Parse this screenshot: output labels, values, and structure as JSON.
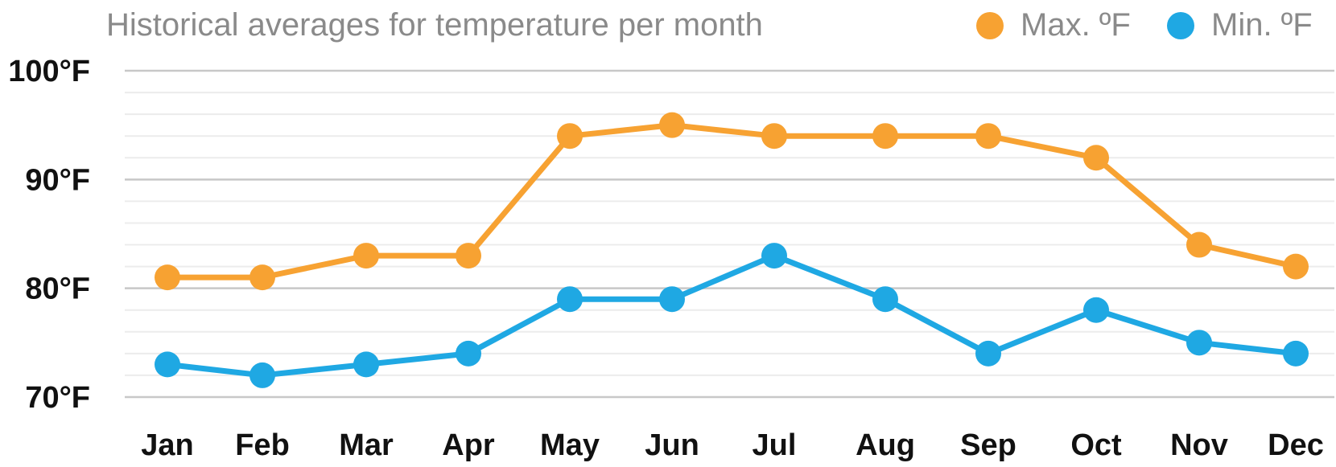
{
  "chart_data": {
    "type": "line",
    "title": "Historical averages for temperature per month",
    "categories": [
      "Jan",
      "Feb",
      "Mar",
      "Apr",
      "May",
      "Jun",
      "Jul",
      "Aug",
      "Sep",
      "Oct",
      "Nov",
      "Dec"
    ],
    "series": [
      {
        "name": "Max. ºF",
        "color": "#f7a232",
        "values": [
          81,
          81,
          83,
          83,
          94,
          95,
          94,
          94,
          94,
          92,
          84,
          82
        ]
      },
      {
        "name": "Min. ºF",
        "color": "#1fa8e3",
        "values": [
          73,
          72,
          73,
          74,
          79,
          79,
          83,
          79,
          74,
          78,
          75,
          74
        ]
      }
    ],
    "ylim": [
      70,
      100
    ],
    "yticks": [
      70,
      80,
      90,
      100
    ],
    "ytick_labels": [
      "70°F",
      "80°F",
      "90°F",
      "100°F"
    ],
    "xlabel": "",
    "ylabel": "",
    "grid": true,
    "legend_position": "top-right"
  }
}
